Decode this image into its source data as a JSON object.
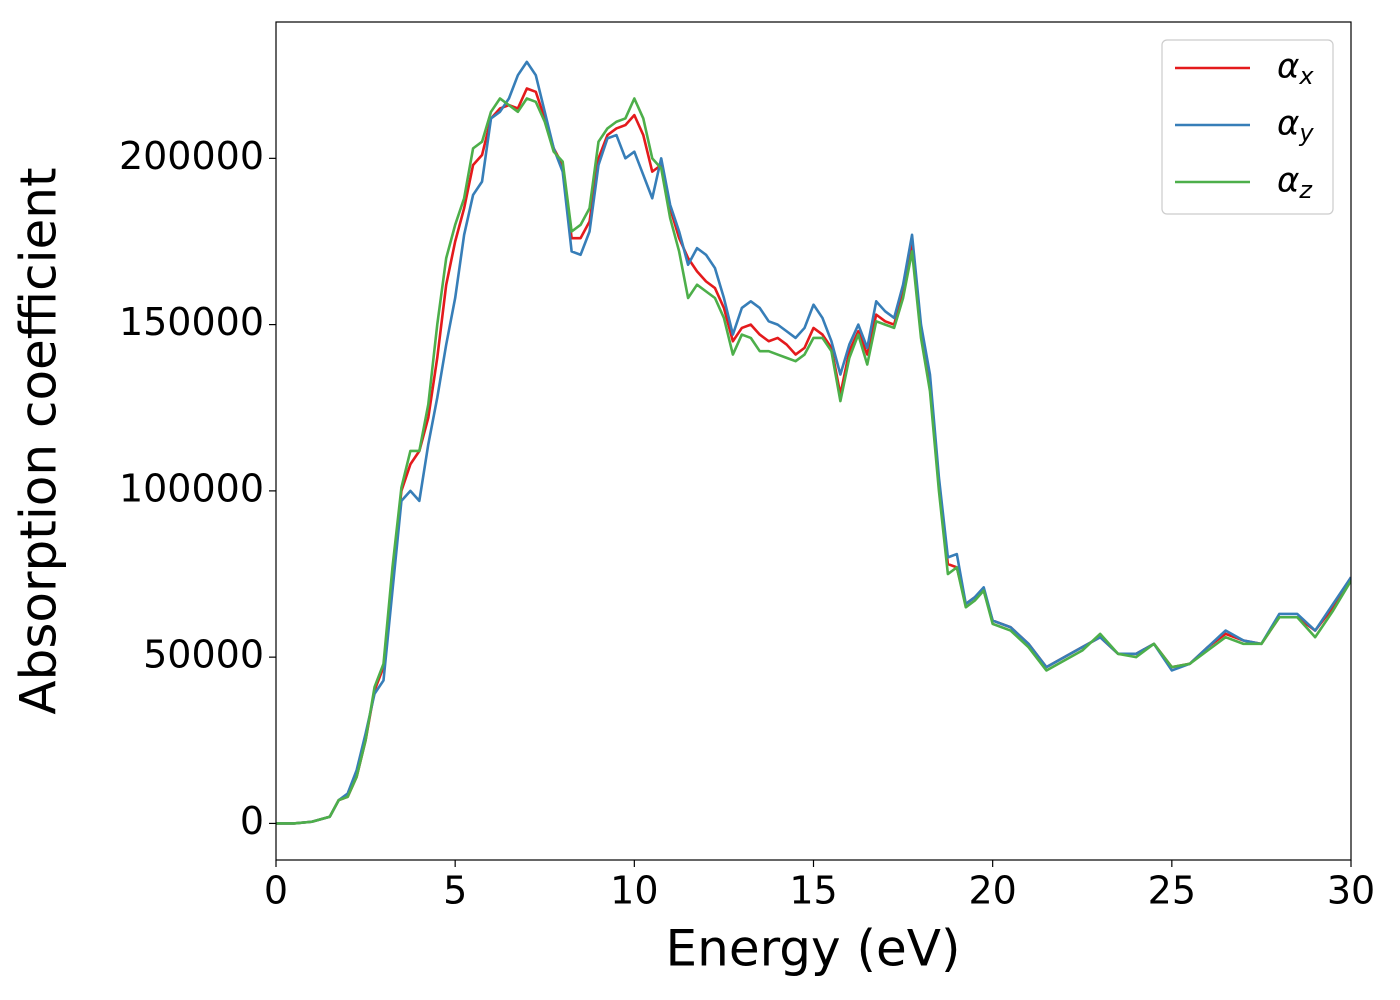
{
  "chart_data": {
    "type": "line",
    "xlabel": "Energy (eV)",
    "ylabel": "Absorption coefficient",
    "x": [
      0,
      0.5,
      1,
      1.5,
      1.75,
      2,
      2.25,
      2.5,
      2.75,
      3,
      3.25,
      3.5,
      3.75,
      4,
      4.25,
      4.5,
      4.75,
      5,
      5.25,
      5.5,
      5.75,
      6,
      6.25,
      6.5,
      6.75,
      7,
      7.25,
      7.5,
      7.75,
      8,
      8.25,
      8.5,
      8.75,
      9,
      9.25,
      9.5,
      9.75,
      10,
      10.25,
      10.5,
      10.75,
      11,
      11.25,
      11.5,
      11.75,
      12,
      12.25,
      12.5,
      12.75,
      13,
      13.25,
      13.5,
      13.75,
      14,
      14.25,
      14.5,
      14.75,
      15,
      15.25,
      15.5,
      15.75,
      16,
      16.25,
      16.5,
      16.75,
      17,
      17.25,
      17.5,
      17.75,
      18,
      18.25,
      18.5,
      18.75,
      19,
      19.25,
      19.5,
      19.75,
      20,
      20.5,
      21,
      21.5,
      22,
      22.5,
      23,
      23.5,
      24,
      24.5,
      25,
      25.5,
      26,
      26.5,
      27,
      27.5,
      28,
      28.5,
      29,
      29.5,
      30
    ],
    "series": [
      {
        "name": "αx",
        "color": "#e41a1c",
        "values": [
          0,
          0,
          500,
          2000,
          7000,
          8000,
          14000,
          25000,
          40000,
          47000,
          75000,
          100000,
          108000,
          112000,
          122000,
          140000,
          162000,
          175000,
          185000,
          198000,
          201000,
          212000,
          215000,
          216000,
          215000,
          221000,
          220000,
          212000,
          203000,
          198000,
          176000,
          176000,
          181000,
          200000,
          207000,
          209000,
          210000,
          213000,
          207000,
          196000,
          198000,
          185000,
          176000,
          170000,
          166000,
          163000,
          161000,
          155000,
          145000,
          149000,
          150000,
          147000,
          145000,
          146000,
          144000,
          141000,
          143000,
          149000,
          147000,
          143000,
          129000,
          142000,
          148000,
          141000,
          153000,
          151000,
          150000,
          160000,
          174000,
          148000,
          132000,
          102000,
          78000,
          77000,
          66000,
          68000,
          70000,
          61000,
          59000,
          54000,
          47000,
          50000,
          53000,
          56000,
          51000,
          51000,
          54000,
          47000,
          48000,
          53000,
          57000,
          55000,
          54000,
          62000,
          62000,
          58000,
          65000,
          74000
        ]
      },
      {
        "name": "αy",
        "color": "#377eb8",
        "values": [
          0,
          0,
          500,
          2000,
          7000,
          9000,
          16000,
          27000,
          39000,
          43000,
          70000,
          97000,
          100000,
          97000,
          114000,
          128000,
          144000,
          158000,
          177000,
          189000,
          193000,
          212000,
          214000,
          218000,
          225000,
          229000,
          225000,
          214000,
          203000,
          196000,
          172000,
          171000,
          178000,
          198000,
          206000,
          207000,
          200000,
          202000,
          195000,
          188000,
          200000,
          186000,
          178000,
          168000,
          173000,
          171000,
          167000,
          158000,
          147000,
          155000,
          157000,
          155000,
          151000,
          150000,
          148000,
          146000,
          149000,
          156000,
          152000,
          145000,
          135000,
          144000,
          150000,
          143000,
          157000,
          154000,
          152000,
          162000,
          177000,
          150000,
          135000,
          104000,
          80000,
          81000,
          66000,
          68000,
          71000,
          61000,
          59000,
          54000,
          47000,
          50000,
          53000,
          56000,
          51000,
          51000,
          54000,
          46000,
          48000,
          53000,
          58000,
          55000,
          54000,
          63000,
          63000,
          58000,
          66000,
          74000
        ]
      },
      {
        "name": "αz",
        "color": "#4daf4a",
        "values": [
          0,
          0,
          500,
          2000,
          7000,
          8000,
          14000,
          25000,
          41000,
          48000,
          77000,
          101000,
          112000,
          112000,
          126000,
          150000,
          170000,
          180000,
          188000,
          203000,
          205000,
          214000,
          218000,
          216000,
          214000,
          218000,
          217000,
          211000,
          202000,
          199000,
          178000,
          180000,
          185000,
          205000,
          209000,
          211000,
          212000,
          218000,
          212000,
          200000,
          197000,
          182000,
          172000,
          158000,
          162000,
          160000,
          158000,
          152000,
          141000,
          147000,
          146000,
          142000,
          142000,
          141000,
          140000,
          139000,
          141000,
          146000,
          146000,
          142000,
          127000,
          140000,
          147000,
          138000,
          151000,
          150000,
          149000,
          158000,
          172000,
          146000,
          130000,
          100000,
          75000,
          77000,
          65000,
          67000,
          70000,
          60000,
          58000,
          53000,
          46000,
          49000,
          52000,
          57000,
          51000,
          50000,
          54000,
          47000,
          48000,
          52000,
          56000,
          54000,
          54000,
          62000,
          62000,
          56000,
          64000,
          73000
        ]
      }
    ],
    "xlim": [
      0,
      30
    ],
    "xticks": [
      0,
      5,
      10,
      15,
      20,
      25,
      30
    ],
    "ylim": [
      -11000,
      241000
    ],
    "yticks": [
      0,
      50000,
      100000,
      150000,
      200000
    ],
    "grid": false,
    "legend": "upper right"
  }
}
